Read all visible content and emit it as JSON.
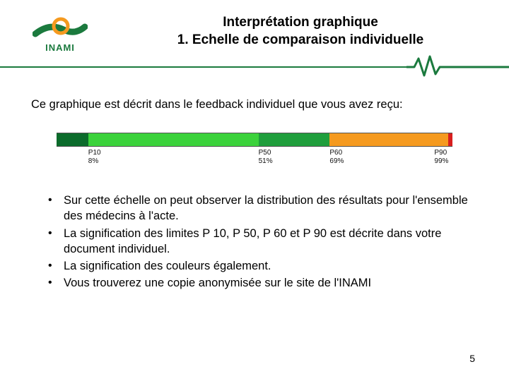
{
  "logo": {
    "name": "INAMI",
    "swoosh_color": "#1b7a3e",
    "ring_color": "#f59a1f"
  },
  "title": {
    "line1": "Interprétation graphique",
    "line2": "1. Echelle de comparaison individuelle"
  },
  "heartbeat_color": "#1b7a3e",
  "rule_color": "#1b7a3e",
  "intro": "Ce graphique est décrit dans le feedback individuel que vous avez reçu:",
  "scale": {
    "type": "stacked-horizontal-bar",
    "segments": [
      {
        "from": 0,
        "to": 8,
        "color": "#0b6b2b"
      },
      {
        "from": 8,
        "to": 51,
        "color": "#3bd23b"
      },
      {
        "from": 51,
        "to": 69,
        "color": "#1f9e3c"
      },
      {
        "from": 69,
        "to": 99,
        "color": "#f59a1f"
      },
      {
        "from": 99,
        "to": 100,
        "color": "#d81f1f"
      }
    ],
    "ticks": [
      {
        "pos": 8,
        "top": "P10",
        "bottom": "8%"
      },
      {
        "pos": 51,
        "top": "P50",
        "bottom": "51%"
      },
      {
        "pos": 69,
        "top": "P60",
        "bottom": "69%"
      },
      {
        "pos": 99,
        "top": "P90",
        "bottom": "99%",
        "align": "right"
      }
    ],
    "tick_fontsize": 10,
    "border_color": "#555555"
  },
  "bullets": [
    "Sur cette échelle on peut observer la distribution des résultats pour l'ensemble des médecins à l'acte.",
    "La signification des limites P 10, P 50, P 60 et P 90 est décrite dans votre document individuel.",
    "La signification des couleurs également.",
    "Vous trouverez une copie anonymisée sur le site de l'INAMI"
  ],
  "page_number": "5"
}
